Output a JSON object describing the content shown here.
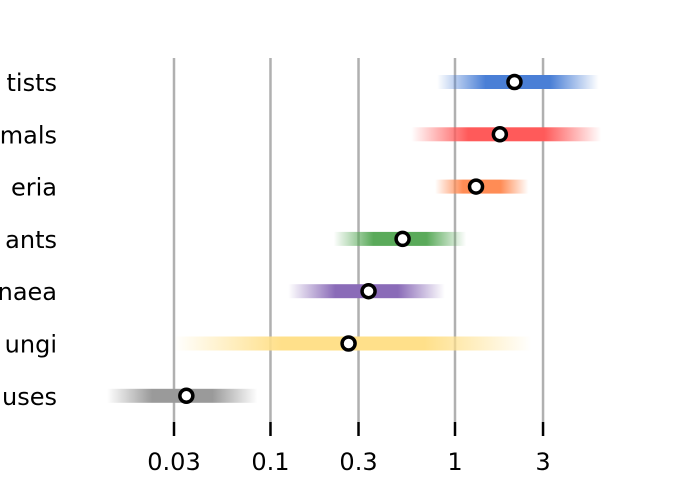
{
  "chart_data": {
    "type": "scatter",
    "xscale": "log",
    "xlim": [
      0.0125,
      6.5
    ],
    "grid": "vertical",
    "ticks": [
      {
        "value": 0.03,
        "label": "0.03"
      },
      {
        "value": 0.1,
        "label": "0.1"
      },
      {
        "value": 0.3,
        "label": "0.3"
      },
      {
        "value": 1,
        "label": "1"
      },
      {
        "value": 3,
        "label": "3"
      }
    ],
    "categories": [
      {
        "label": "tists",
        "value": 2.1,
        "low": 0.8,
        "high": 6.0,
        "color": "#4a7fd6"
      },
      {
        "label": "mals",
        "value": 1.75,
        "low": 0.58,
        "high": 6.2,
        "color": "#ff5a5a"
      },
      {
        "label": "eria",
        "value": 1.3,
        "low": 0.78,
        "high": 2.5,
        "color": "#ff8c55"
      },
      {
        "label": "ants",
        "value": 0.52,
        "low": 0.22,
        "high": 1.15,
        "color": "#5aaa5a"
      },
      {
        "label": "naea",
        "value": 0.34,
        "low": 0.125,
        "high": 0.88,
        "color": "#8a6bb8"
      },
      {
        "label": "ungi",
        "value": 0.265,
        "low": 0.03,
        "high": 2.6,
        "color": "#ffe08a"
      },
      {
        "label": "uses",
        "value": 0.035,
        "low": 0.013,
        "high": 0.085,
        "color": "#9a9a9a"
      }
    ]
  }
}
